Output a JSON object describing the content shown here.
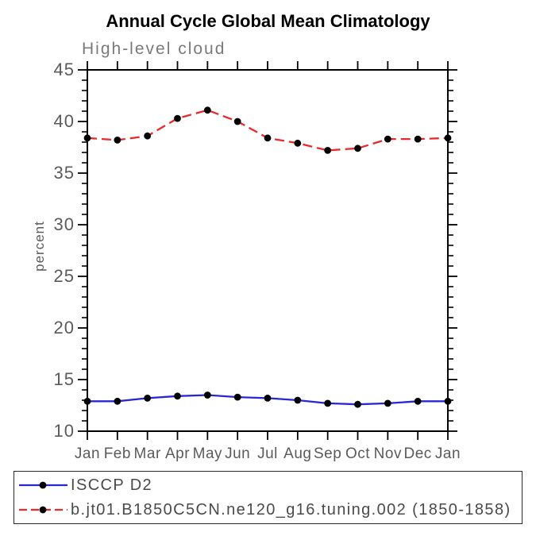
{
  "chart_data": {
    "type": "line",
    "title": "Annual Cycle Global Mean Climatology",
    "subtitle": "High-level cloud",
    "ylabel": "percent",
    "xlabel": "",
    "categories": [
      "Jan",
      "Feb",
      "Mar",
      "Apr",
      "May",
      "Jun",
      "Jul",
      "Aug",
      "Sep",
      "Oct",
      "Nov",
      "Dec",
      "Jan"
    ],
    "ylim": [
      10,
      45
    ],
    "yticks_major": [
      10,
      15,
      20,
      25,
      30,
      35,
      40,
      45
    ],
    "ytick_minor_step": 1,
    "grid": false,
    "legend_position": "bottom-left-box",
    "marker": "black-dot",
    "series": [
      {
        "name": "ISCCP D2",
        "color": "#2727d8",
        "style": "solid",
        "values": [
          12.9,
          12.9,
          13.2,
          13.4,
          13.5,
          13.3,
          13.2,
          13.0,
          12.7,
          12.6,
          12.7,
          12.9,
          12.9
        ]
      },
      {
        "name": "b.jt01.B1850C5CN.ne120_g16.tuning.002 (1850-1858)",
        "color": "#ea2a2a",
        "style": "dashed",
        "values": [
          38.4,
          38.2,
          38.6,
          40.3,
          41.1,
          40.0,
          38.4,
          37.9,
          37.2,
          37.4,
          38.3,
          38.3,
          38.4
        ]
      }
    ],
    "colors": {
      "axis": "#000000",
      "tick_label": "#5a5a5a",
      "subtitle": "#7a7a7a",
      "legend_text": "#4a4a4a",
      "marker_fill": "#000000"
    }
  }
}
